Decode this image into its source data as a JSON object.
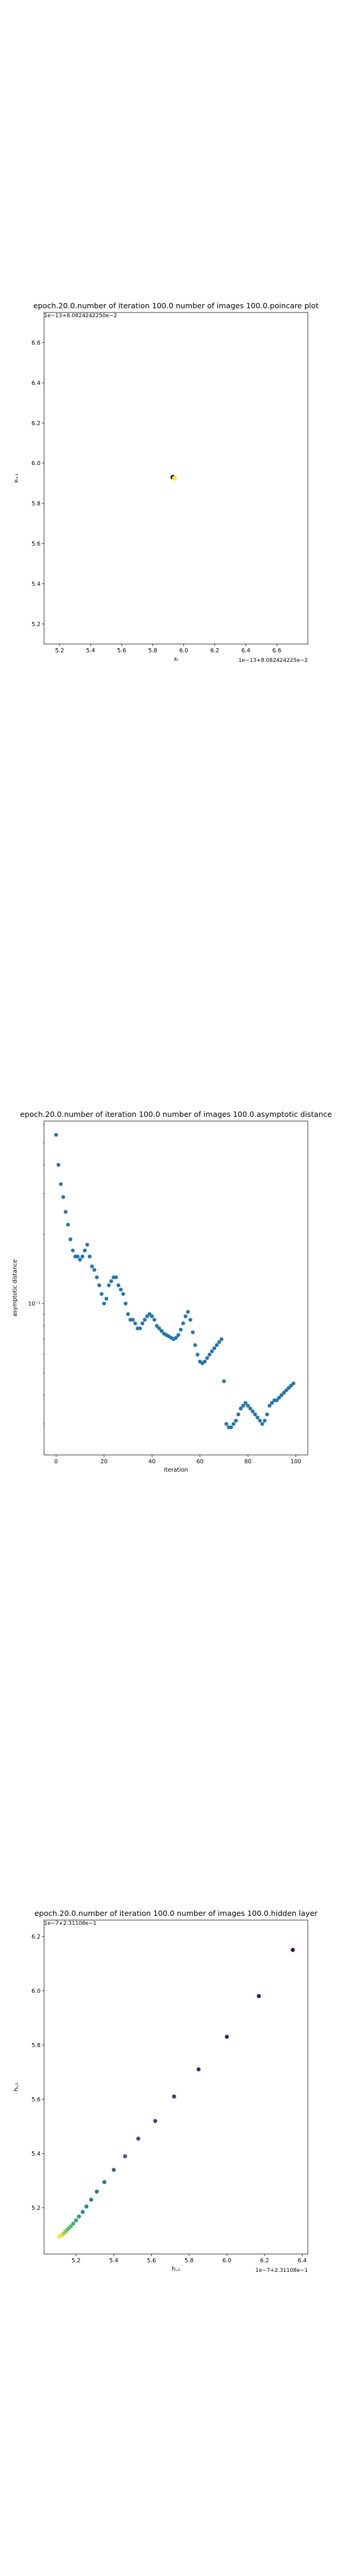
{
  "chart_data": [
    {
      "type": "scatter",
      "title": "epoch.20.0.number of iteration 100.0 number of images 100.0.poincare plot",
      "xlabel": "xᵢ",
      "ylabel": "xᵢ₊₁",
      "x_offset_text": "1e−13+8.082424225e−2",
      "y_offset_text": "1e−13+8.0824242250e−2",
      "xlim": [
        5.1,
        6.8
      ],
      "ylim": [
        5.1,
        6.75
      ],
      "xticks": [
        "5.2",
        "5.4",
        "5.6",
        "5.8",
        "6.0",
        "6.2",
        "6.4",
        "6.6"
      ],
      "yticks": [
        "5.2",
        "5.4",
        "5.6",
        "5.8",
        "6.0",
        "6.2",
        "6.4",
        "6.6"
      ],
      "grid": false,
      "points": [
        {
          "x": 5.93,
          "y": 5.93,
          "color": "#440154"
        },
        {
          "x": 5.94,
          "y": 5.925,
          "color": "#fde725"
        }
      ]
    },
    {
      "type": "scatter",
      "title": "epoch.20.0.number of iteration 100.0  number of images 100.0.asymptotic distance",
      "xlabel": "iteration",
      "ylabel": "asymptotic distance",
      "yscale": "log",
      "yticks": [
        "10⁻¹"
      ],
      "xticks": [
        "0",
        "20",
        "40",
        "60",
        "80",
        "100"
      ],
      "xlim": [
        -5,
        105
      ],
      "ylim": [
        0.022,
        0.62
      ],
      "grid": false,
      "color": "#1f77b4",
      "x": [
        0,
        1,
        2,
        3,
        4,
        5,
        6,
        7,
        8,
        9,
        10,
        11,
        12,
        13,
        14,
        15,
        16,
        17,
        18,
        19,
        20,
        21,
        22,
        23,
        24,
        25,
        26,
        27,
        28,
        29,
        30,
        31,
        32,
        33,
        34,
        35,
        36,
        37,
        38,
        39,
        40,
        41,
        42,
        43,
        44,
        45,
        46,
        47,
        48,
        49,
        50,
        51,
        52,
        53,
        54,
        55,
        56,
        57,
        58,
        59,
        60,
        61,
        62,
        63,
        64,
        65,
        66,
        67,
        68,
        69,
        70,
        71,
        72,
        73,
        74,
        75,
        76,
        77,
        78,
        79,
        80,
        81,
        82,
        83,
        84,
        85,
        86,
        87,
        88,
        89,
        90,
        91,
        92,
        93,
        94,
        95,
        96,
        97,
        98,
        99
      ],
      "y": [
        0.54,
        0.4,
        0.33,
        0.29,
        0.25,
        0.22,
        0.19,
        0.17,
        0.16,
        0.16,
        0.155,
        0.16,
        0.17,
        0.18,
        0.16,
        0.145,
        0.14,
        0.13,
        0.12,
        0.11,
        0.1,
        0.105,
        0.12,
        0.125,
        0.13,
        0.13,
        0.12,
        0.115,
        0.11,
        0.1,
        0.09,
        0.085,
        0.085,
        0.082,
        0.078,
        0.078,
        0.082,
        0.085,
        0.088,
        0.09,
        0.088,
        0.085,
        0.08,
        0.078,
        0.076,
        0.074,
        0.073,
        0.072,
        0.071,
        0.07,
        0.071,
        0.073,
        0.077,
        0.082,
        0.088,
        0.092,
        0.085,
        0.075,
        0.066,
        0.06,
        0.056,
        0.055,
        0.056,
        0.058,
        0.06,
        0.062,
        0.064,
        0.066,
        0.068,
        0.07,
        0.046,
        0.03,
        0.029,
        0.029,
        0.03,
        0.031,
        0.033,
        0.035,
        0.036,
        0.037,
        0.036,
        0.035,
        0.034,
        0.033,
        0.032,
        0.031,
        0.03,
        0.031,
        0.033,
        0.036,
        0.037,
        0.038,
        0.038,
        0.039,
        0.04,
        0.041,
        0.042,
        0.043,
        0.044,
        0.045
      ]
    },
    {
      "type": "scatter",
      "title": "epoch.20.0.number of iteration 100.0  number of images 100.0.hidden layer",
      "xlabel": "hᵢ,₁",
      "ylabel": "hᵢ,₂",
      "x_offset_text": "1e−7+2.31108e−1",
      "y_offset_text": "1e−7+2.31108e−1",
      "xlim": [
        5.03,
        6.43
      ],
      "ylim": [
        5.03,
        6.26
      ],
      "xticks": [
        "5.2",
        "5.4",
        "5.6",
        "5.8",
        "6.0",
        "6.2",
        "6.4"
      ],
      "yticks": [
        "5.2",
        "5.4",
        "5.6",
        "5.8",
        "6.0",
        "6.2"
      ],
      "grid": false,
      "points_x": [
        6.35,
        6.17,
        6.0,
        5.85,
        5.72,
        5.62,
        5.53,
        5.46,
        5.4,
        5.35,
        5.31,
        5.28,
        5.255,
        5.235,
        5.215,
        5.2,
        5.185,
        5.172,
        5.16,
        5.15,
        5.142,
        5.135,
        5.128,
        5.122,
        5.117,
        5.112
      ],
      "points_y": [
        6.15,
        5.98,
        5.83,
        5.71,
        5.61,
        5.52,
        5.455,
        5.39,
        5.34,
        5.295,
        5.26,
        5.23,
        5.205,
        5.185,
        5.168,
        5.154,
        5.142,
        5.132,
        5.124,
        5.117,
        5.111,
        5.106,
        5.102,
        5.099,
        5.096,
        5.094
      ]
    }
  ]
}
